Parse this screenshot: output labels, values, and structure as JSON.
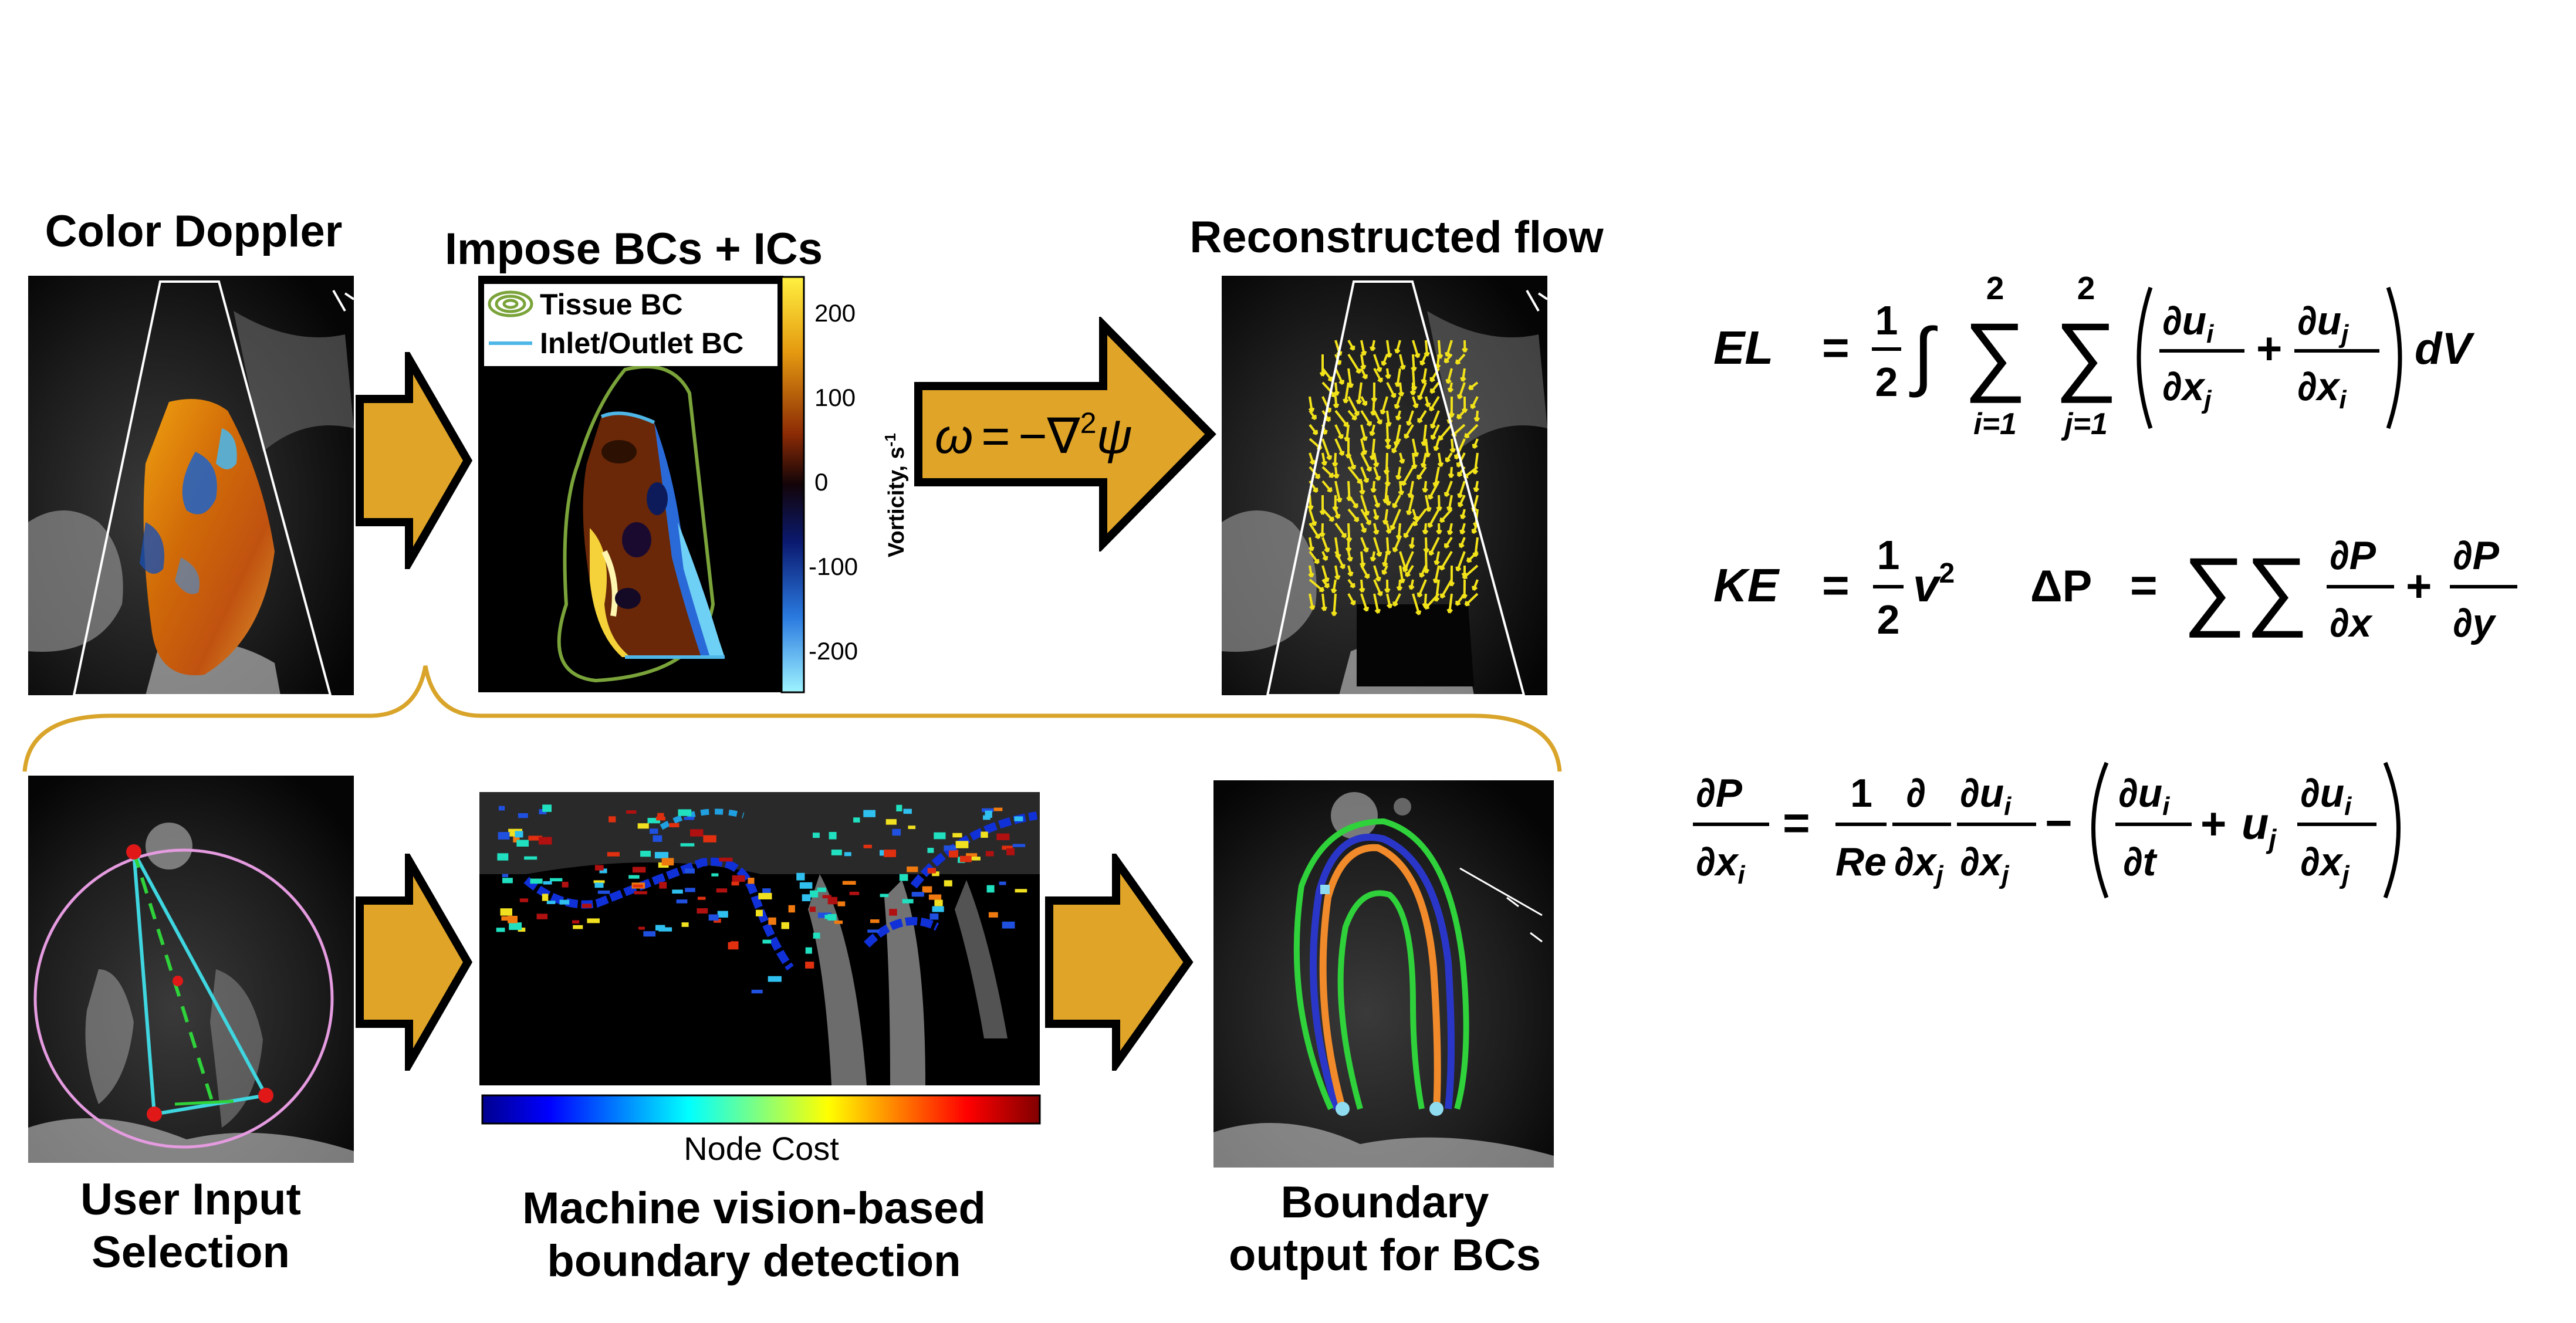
{
  "panels": {
    "color_doppler": {
      "title": "Color Doppler"
    },
    "impose": {
      "title": "Impose BCs + ICs",
      "legend": {
        "tissue": "Tissue BC",
        "inlet": "Inlet/Outlet BC"
      },
      "colorbar": {
        "label": "Vorticity, s",
        "label_sup": "-1",
        "ticks": [
          "200",
          "100",
          "0",
          "-100",
          "-200"
        ]
      }
    },
    "arrow_eq": {
      "omega": "ω",
      "eq": "=",
      "minus": "−",
      "nabla": "∇",
      "sq": "2",
      "psi": "ψ"
    },
    "reconstructed": {
      "title": "Reconstructed flow"
    },
    "user_input": {
      "title_line1": "User Input",
      "title_line2": "Selection"
    },
    "machine": {
      "title_line1": "Machine vision-based",
      "title_line2": "boundary detection",
      "colorbar_label": "Node Cost"
    },
    "boundary": {
      "title_line1": "Boundary",
      "title_line2": "output for BCs"
    }
  },
  "equations": {
    "el": {
      "lhs": "EL",
      "eq": "=",
      "half_n": "1",
      "half_d": "2",
      "integral": "∫",
      "sum": "∑",
      "sum_top": "2",
      "sum_i": "i=1",
      "sum_j": "j=1",
      "t1_n": "∂u",
      "t1_n_sub": "i",
      "t1_d": "∂x",
      "t1_d_sub": "j",
      "plus": "+",
      "t2_n": "∂u",
      "t2_n_sub": "j",
      "t2_d": "∂x",
      "t2_d_sub": "i",
      "dv": "dV"
    },
    "ke": {
      "lhs": "KE",
      "eq": "=",
      "n": "1",
      "d": "2",
      "v": "v",
      "sup": "2"
    },
    "dp": {
      "lhs": "ΔP",
      "eq": "=",
      "sums": "∑∑",
      "n1": "∂P",
      "d1": "∂x",
      "plus": "+",
      "n2": "∂P",
      "d2": "∂y"
    },
    "ns": {
      "ln": "∂P",
      "ld": "∂x",
      "ld_sub": "i",
      "eq": "=",
      "rn": "1",
      "rd": "Re",
      "dn": "∂",
      "dd": "∂x",
      "dd_sub": "j",
      "un": "∂u",
      "un_sub": "i",
      "ud": "∂x",
      "ud_sub": "j",
      "minus": "−",
      "pn": "∂u",
      "pn_sub": "i",
      "pd": "∂t",
      "plus": "+",
      "uj": "u",
      "uj_sub": "j",
      "qn": "∂u",
      "qn_sub": "i",
      "qd": "∂x",
      "qd_sub": "j"
    }
  },
  "colors": {
    "arrow_fill": "#E0A528",
    "arrow_stroke": "#000000",
    "brace": "#D9A42A",
    "tissue_bc": "#7AA33A",
    "inlet_bc": "#4FB7E8",
    "boundary_green": "#2FD23A",
    "boundary_orange": "#F08A2A",
    "boundary_blue": "#2A36C8",
    "selection_cyan": "#3FD6E0",
    "selection_circle": "#E59BE0",
    "marker_red": "#E01818",
    "quiver_yellow": "#F2E21A"
  }
}
